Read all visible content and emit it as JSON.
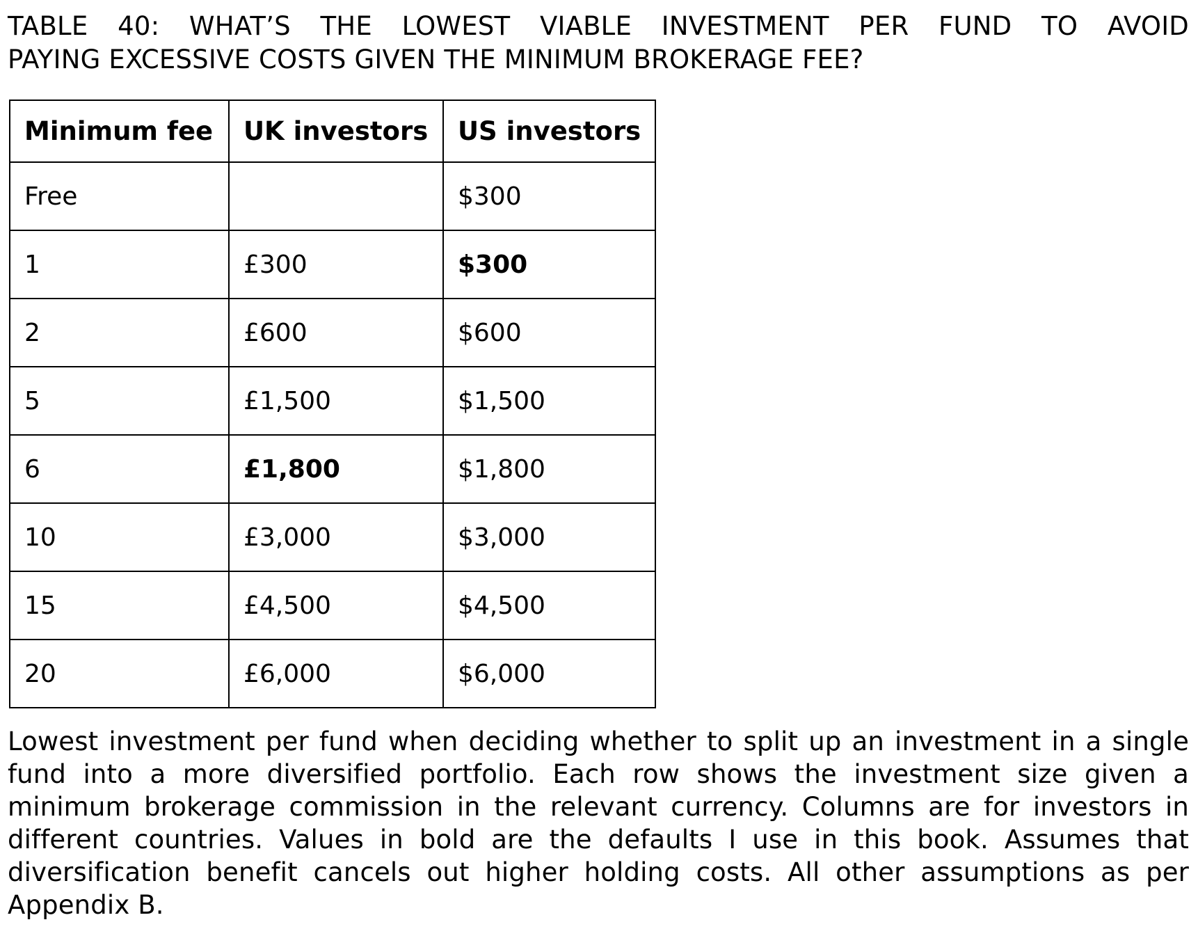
{
  "caption": {
    "title_line1": "TABLE 40: WHAT’S THE LOWEST VIABLE INVESTMENT PER FUND TO AVOID",
    "title_line2": "PAYING EXCESSIVE COSTS GIVEN THE MINIMUM BROKERAGE FEE?"
  },
  "table": {
    "headers": [
      "Minimum fee",
      "UK investors",
      "US investors"
    ],
    "rows": [
      {
        "min_fee": "Free",
        "uk": "",
        "us": "$300"
      },
      {
        "min_fee": "1",
        "uk": "£300",
        "us": "$300"
      },
      {
        "min_fee": "2",
        "uk": "£600",
        "us": "$600"
      },
      {
        "min_fee": "5",
        "uk": "£1,500",
        "us": "$1,500"
      },
      {
        "min_fee": "6",
        "uk": "£1,800",
        "us": "$1,800"
      },
      {
        "min_fee": "10",
        "uk": "£3,000",
        "us": "$3,000"
      },
      {
        "min_fee": "15",
        "uk": "£4,500",
        "us": "$4,500"
      },
      {
        "min_fee": "20",
        "uk": "£6,000",
        "us": "$6,000"
      }
    ]
  },
  "note": "Lowest investment per fund when deciding whether to split up an investment in a single fund into a more diversified portfolio. Each row shows the investment size given a minimum brokerage commission in the relevant currency. Columns are for investors in different countries. Values in bold are the defaults I use in this book. Assumes that diversification benefit cancels out higher holding costs. All other assumptions as per Appendix B."
}
